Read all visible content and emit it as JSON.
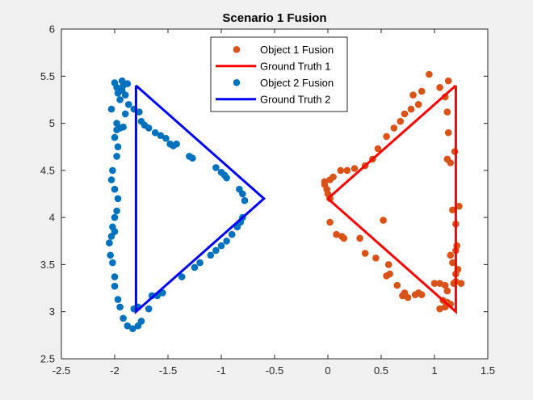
{
  "chart_data": {
    "type": "scatter",
    "title": "Scenario 1 Fusion",
    "xlabel": "",
    "ylabel": "",
    "xlim": [
      -2.5,
      1.5
    ],
    "ylim": [
      2.5,
      6
    ],
    "xticks": [
      "-2.5",
      "-2",
      "-1.5",
      "-1",
      "-0.5",
      "0",
      "0.5",
      "1",
      "1.5"
    ],
    "yticks": [
      "2.5",
      "3",
      "3.5",
      "4",
      "4.5",
      "5",
      "5.5",
      "6"
    ],
    "legend_position": "top",
    "series": [
      {
        "name": "Object 1 Fusion",
        "kind": "markers",
        "color": "#d95319",
        "points": [
          [
            0.95,
            5.52
          ],
          [
            1.13,
            5.45
          ],
          [
            1.05,
            5.38
          ],
          [
            0.88,
            5.34
          ],
          [
            0.8,
            5.3
          ],
          [
            1.1,
            5.28
          ],
          [
            0.85,
            5.2
          ],
          [
            0.78,
            5.15
          ],
          [
            1.12,
            5.12
          ],
          [
            0.72,
            5.1
          ],
          [
            0.68,
            5.02
          ],
          [
            0.62,
            4.95
          ],
          [
            0.55,
            4.86
          ],
          [
            0.47,
            4.73
          ],
          [
            0.42,
            4.62
          ],
          [
            0.35,
            4.55
          ],
          [
            0.25,
            4.52
          ],
          [
            0.18,
            4.5
          ],
          [
            0.12,
            4.5
          ],
          [
            0.05,
            4.43
          ],
          [
            0.02,
            4.4
          ],
          [
            -0.03,
            4.38
          ],
          [
            -0.03,
            4.35
          ],
          [
            -0.01,
            4.3
          ],
          [
            0.0,
            4.25
          ],
          [
            0.02,
            4.2
          ],
          [
            1.13,
            4.9
          ],
          [
            1.19,
            4.7
          ],
          [
            1.12,
            4.62
          ],
          [
            1.15,
            4.58
          ],
          [
            1.23,
            4.12
          ],
          [
            1.17,
            4.08
          ],
          [
            1.2,
            3.93
          ],
          [
            1.21,
            3.7
          ],
          [
            1.2,
            3.65
          ],
          [
            1.15,
            3.6
          ],
          [
            1.17,
            3.52
          ],
          [
            1.22,
            3.45
          ],
          [
            1.2,
            3.4
          ],
          [
            1.2,
            3.32
          ],
          [
            0.52,
            3.97
          ],
          [
            0.02,
            3.95
          ],
          [
            0.08,
            3.82
          ],
          [
            0.13,
            3.8
          ],
          [
            0.15,
            3.78
          ],
          [
            0.3,
            3.78
          ],
          [
            0.35,
            3.62
          ],
          [
            0.45,
            3.57
          ],
          [
            0.57,
            3.5
          ],
          [
            0.58,
            3.4
          ],
          [
            0.55,
            3.38
          ],
          [
            0.65,
            3.28
          ],
          [
            0.72,
            3.2
          ],
          [
            0.7,
            3.17
          ],
          [
            0.75,
            3.15
          ],
          [
            0.82,
            3.18
          ],
          [
            0.85,
            3.2
          ],
          [
            0.88,
            3.18
          ],
          [
            1.0,
            3.3
          ],
          [
            1.05,
            3.3
          ],
          [
            1.1,
            3.28
          ],
          [
            1.12,
            3.22
          ],
          [
            1.18,
            3.3
          ],
          [
            1.25,
            3.3
          ],
          [
            1.08,
            3.12
          ],
          [
            1.12,
            3.1
          ],
          [
            1.15,
            3.08
          ],
          [
            1.05,
            3.03
          ],
          [
            1.1,
            3.05
          ]
        ]
      },
      {
        "name": "Ground Truth 1",
        "kind": "line",
        "color": "#ff0000",
        "points": [
          [
            1.2,
            5.4
          ],
          [
            1.2,
            3.0
          ],
          [
            0.0,
            4.2
          ],
          [
            1.2,
            5.4
          ]
        ]
      },
      {
        "name": "Object 2 Fusion",
        "kind": "markers",
        "color": "#0072bd",
        "points": [
          [
            -2.0,
            5.43
          ],
          [
            -1.98,
            5.38
          ],
          [
            -1.93,
            5.45
          ],
          [
            -1.92,
            5.4
          ],
          [
            -1.88,
            5.42
          ],
          [
            -1.97,
            5.32
          ],
          [
            -1.93,
            5.35
          ],
          [
            -1.9,
            5.3
          ],
          [
            -1.95,
            5.25
          ],
          [
            -1.87,
            5.2
          ],
          [
            -1.82,
            5.15
          ],
          [
            -1.77,
            5.12
          ],
          [
            -1.9,
            5.1
          ],
          [
            -1.95,
            4.95
          ],
          [
            -1.98,
            4.93
          ],
          [
            -1.92,
            4.96
          ],
          [
            -1.75,
            5.02
          ],
          [
            -1.72,
            4.98
          ],
          [
            -1.68,
            4.95
          ],
          [
            -1.62,
            4.9
          ],
          [
            -1.57,
            4.87
          ],
          [
            -1.52,
            4.84
          ],
          [
            -1.48,
            4.78
          ],
          [
            -1.45,
            4.76
          ],
          [
            -1.42,
            4.78
          ],
          [
            -1.3,
            4.65
          ],
          [
            -1.27,
            4.63
          ],
          [
            -1.05,
            4.53
          ],
          [
            -1.0,
            4.48
          ],
          [
            -0.97,
            4.45
          ],
          [
            -0.95,
            4.42
          ],
          [
            -0.83,
            4.3
          ],
          [
            -0.8,
            4.25
          ],
          [
            -0.78,
            4.18
          ],
          [
            -0.8,
            4.0
          ],
          [
            -0.82,
            3.95
          ],
          [
            -0.85,
            3.9
          ],
          [
            -0.9,
            3.82
          ],
          [
            -0.95,
            3.75
          ],
          [
            -1.0,
            3.7
          ],
          [
            -1.05,
            3.65
          ],
          [
            -1.1,
            3.6
          ],
          [
            -1.2,
            3.52
          ],
          [
            -1.25,
            3.47
          ],
          [
            -1.37,
            3.37
          ],
          [
            -1.55,
            3.2
          ],
          [
            -1.6,
            3.17
          ],
          [
            -1.65,
            3.17
          ],
          [
            -1.78,
            3.05
          ],
          [
            -1.82,
            3.03
          ],
          [
            -1.68,
            3.03
          ],
          [
            -1.75,
            2.9
          ],
          [
            -1.78,
            2.85
          ],
          [
            -1.83,
            2.82
          ],
          [
            -1.88,
            2.85
          ],
          [
            -1.92,
            2.93
          ],
          [
            -1.95,
            3.05
          ],
          [
            -1.97,
            3.13
          ],
          [
            -2.0,
            3.27
          ],
          [
            -2.0,
            3.37
          ],
          [
            -2.02,
            3.52
          ],
          [
            -2.04,
            3.6
          ],
          [
            -2.05,
            3.73
          ],
          [
            -2.03,
            3.8
          ],
          [
            -2.0,
            3.85
          ],
          [
            -2.02,
            3.9
          ],
          [
            -2.0,
            4.0
          ],
          [
            -1.98,
            4.07
          ],
          [
            -1.97,
            4.2
          ],
          [
            -2.0,
            4.3
          ],
          [
            -2.03,
            4.4
          ],
          [
            -2.02,
            4.5
          ],
          [
            -1.98,
            4.65
          ],
          [
            -1.97,
            4.75
          ],
          [
            -2.0,
            4.85
          ],
          [
            -1.98,
            5.0
          ],
          [
            -2.03,
            5.15
          ]
        ]
      },
      {
        "name": "Ground Truth 2",
        "kind": "line",
        "color": "#0000ff",
        "points": [
          [
            -1.8,
            5.4
          ],
          [
            -1.8,
            3.0
          ],
          [
            -0.6,
            4.2
          ],
          [
            -1.8,
            5.4
          ]
        ]
      }
    ]
  }
}
